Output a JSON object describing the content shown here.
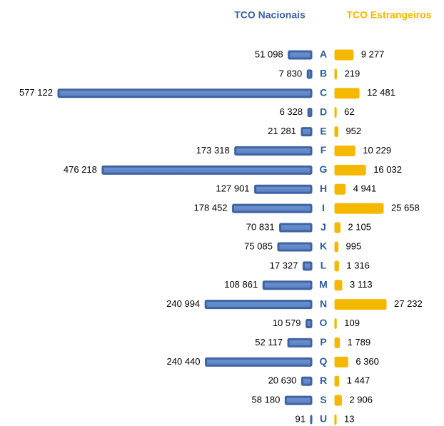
{
  "chart_data": {
    "type": "butterfly_bar",
    "categories": [
      "A",
      "B",
      "C",
      "D",
      "E",
      "F",
      "G",
      "H",
      "I",
      "J",
      "K",
      "L",
      "M",
      "N",
      "O",
      "P",
      "Q",
      "R",
      "S",
      "U"
    ],
    "series": [
      {
        "name": "TCO Nacionais",
        "color": "#3e64a4",
        "values": [
          51098,
          7830,
          577122,
          6328,
          21281,
          173318,
          476218,
          127901,
          178452,
          70831,
          75085,
          17327,
          108861,
          240994,
          10579,
          52117,
          240440,
          20630,
          58180,
          91
        ],
        "value_labels": [
          "51 098",
          "7 830",
          "577 122",
          "6 328",
          "21 281",
          "173 318",
          "476 218",
          "127 901",
          "178 452",
          "70 831",
          "75 085",
          "17 327",
          "108 861",
          "240 994",
          "10 579",
          "52 117",
          "240 440",
          "20 630",
          "58 180",
          "91"
        ]
      },
      {
        "name": "TCO Estrangeiros",
        "color": "#f5b800",
        "values": [
          9277,
          219,
          12481,
          62,
          952,
          10229,
          16032,
          4941,
          25658,
          2105,
          995,
          1316,
          3113,
          27232,
          109,
          1789,
          6360,
          1447,
          2906,
          13
        ],
        "value_labels": [
          "9 277",
          "219",
          "12 481",
          "62",
          "952",
          "10 229",
          "16 032",
          "4 941",
          "25 658",
          "2 105",
          "995",
          "1 316",
          "3 113",
          "27 232",
          "109",
          "1 789",
          "6 360",
          "1 447",
          "2 906",
          "13"
        ]
      }
    ]
  }
}
